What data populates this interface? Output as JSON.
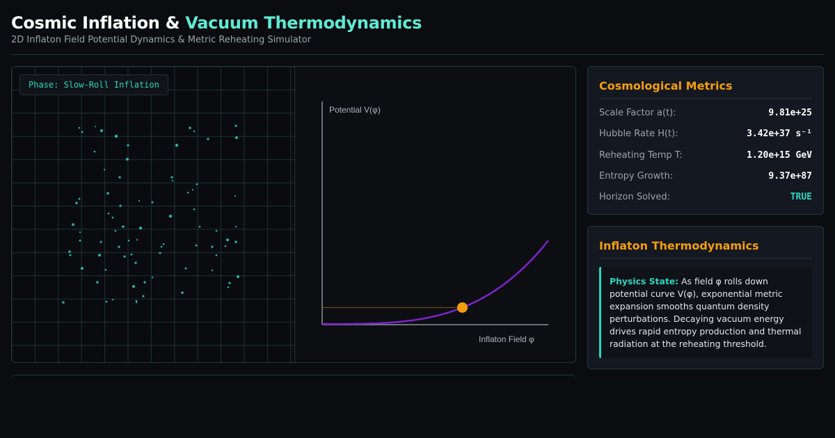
{
  "header": {
    "title_part1": "Cosmic Inflation & ",
    "title_part2": "Vacuum Thermodynamics",
    "subtitle": "2D Inflaton Field Potential Dynamics & Metric Reheating Simulator"
  },
  "simulation": {
    "phase_badge": "Phase: Slow-Roll Inflation",
    "potential_plot": {
      "y_axis_label": "Potential V(φ)",
      "x_axis_label": "Inflaton Field φ",
      "field_position_fraction": 0.62
    },
    "colors": {
      "particle": "#2dd4bf",
      "grid": "#1b3530",
      "curve": "#7e22ce",
      "marker": "#f59e0b"
    }
  },
  "metrics": {
    "title": "Cosmological Metrics",
    "rows": [
      {
        "label": "Scale Factor a(t):",
        "value": "9.81e+25"
      },
      {
        "label": "Hubble Rate H(t):",
        "value": "3.42e+37 s⁻¹"
      },
      {
        "label": "Reheating Temp T:",
        "value": "1.20e+15 GeV"
      },
      {
        "label": "Entropy Growth:",
        "value": "9.37e+87"
      },
      {
        "label": "Horizon Solved:",
        "value": "TRUE"
      }
    ]
  },
  "thermo": {
    "title": "Inflaton Thermodynamics",
    "state_label": "Physics State:",
    "state_text": " As field φ rolls down potential curve V(φ), exponential metric expansion smooths quantum density perturbations. Decaying vacuum energy drives rapid entropy production and thermal radiation at the reheating threshold."
  }
}
